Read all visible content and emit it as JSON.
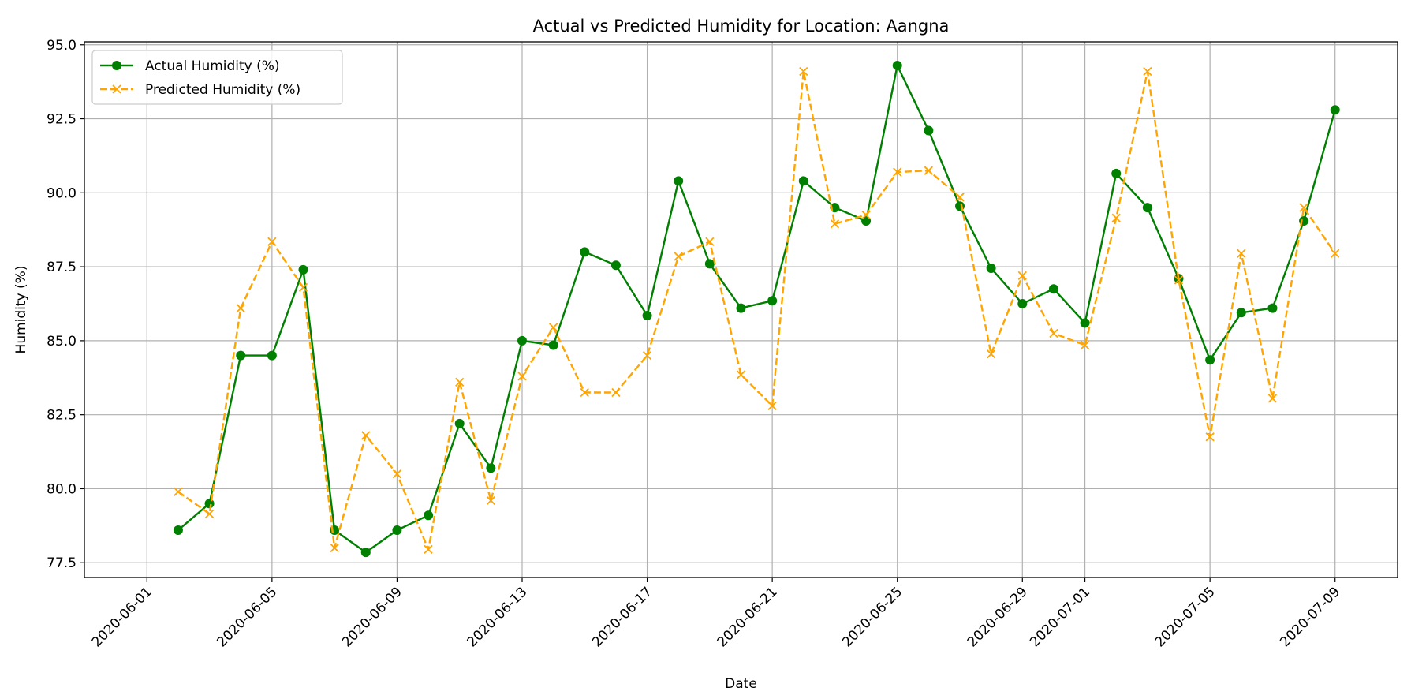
{
  "chart_data": {
    "type": "line",
    "title": "Actual vs Predicted Humidity for Location: Aangna",
    "xlabel": "Date",
    "ylabel": "Humidity (%)",
    "ylim": [
      77.0,
      95.1
    ],
    "xlim": [
      "2020-05-30",
      "2020-07-11"
    ],
    "grid": true,
    "legend_position": "top-left",
    "y_ticks": [
      "77.5",
      "80.0",
      "82.5",
      "85.0",
      "87.5",
      "90.0",
      "92.5",
      "95.0"
    ],
    "x_ticks": [
      "2020-06-01",
      "2020-06-05",
      "2020-06-09",
      "2020-06-13",
      "2020-06-17",
      "2020-06-21",
      "2020-06-25",
      "2020-06-29",
      "2020-07-01",
      "2020-07-05",
      "2020-07-09"
    ],
    "x": [
      "2020-06-02",
      "2020-06-03",
      "2020-06-04",
      "2020-06-05",
      "2020-06-06",
      "2020-06-07",
      "2020-06-08",
      "2020-06-09",
      "2020-06-10",
      "2020-06-11",
      "2020-06-12",
      "2020-06-13",
      "2020-06-14",
      "2020-06-15",
      "2020-06-16",
      "2020-06-17",
      "2020-06-18",
      "2020-06-19",
      "2020-06-20",
      "2020-06-21",
      "2020-06-22",
      "2020-06-23",
      "2020-06-24",
      "2020-06-25",
      "2020-06-26",
      "2020-06-27",
      "2020-06-28",
      "2020-06-29",
      "2020-06-30",
      "2020-07-01",
      "2020-07-02",
      "2020-07-03",
      "2020-07-04",
      "2020-07-05",
      "2020-07-06",
      "2020-07-07",
      "2020-07-08",
      "2020-07-09"
    ],
    "series": [
      {
        "name": "Actual Humidity (%)",
        "color": "#008000",
        "line_style": "solid",
        "marker": "circle",
        "values": [
          78.6,
          79.5,
          84.5,
          84.5,
          87.4,
          78.6,
          77.85,
          78.6,
          79.1,
          82.2,
          80.7,
          85.0,
          84.85,
          88.0,
          87.55,
          85.85,
          90.4,
          87.6,
          86.1,
          86.35,
          90.4,
          89.5,
          89.05,
          94.3,
          92.1,
          89.55,
          87.45,
          86.25,
          86.75,
          85.6,
          90.65,
          89.5,
          87.1,
          84.35,
          85.95,
          86.1,
          89.05,
          92.8
        ]
      },
      {
        "name": "Predicted Humidity (%)",
        "color": "#ffa500",
        "line_style": "dashed",
        "marker": "x",
        "values": [
          79.9,
          79.15,
          86.1,
          88.35,
          86.8,
          78.0,
          81.8,
          80.5,
          77.95,
          83.6,
          79.6,
          83.8,
          85.45,
          83.25,
          83.25,
          84.5,
          87.85,
          88.35,
          83.85,
          82.8,
          94.1,
          88.95,
          89.25,
          90.7,
          90.75,
          89.85,
          84.55,
          87.2,
          85.25,
          84.85,
          89.15,
          94.1,
          87.05,
          81.75,
          87.95,
          83.05,
          89.5,
          87.95
        ]
      }
    ]
  }
}
